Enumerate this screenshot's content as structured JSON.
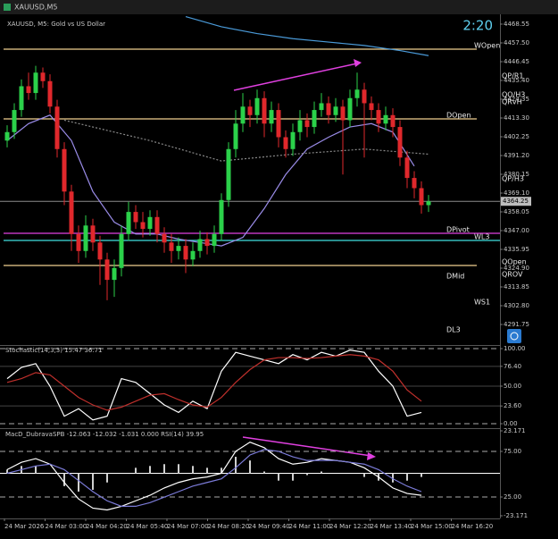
{
  "window_title": "XAUUSD,M5",
  "time_labels": [
    "24 Mar 2026",
    "24 Mar 03:00",
    "24 Mar 04:20",
    "24 Mar 05:40",
    "24 Mar 07:00",
    "24 Mar 08:20",
    "24 Mar 09:40",
    "24 Mar 11:00",
    "24 Mar 12:20",
    "24 Mar 13:40",
    "24 Mar 15:00",
    "24 Mar 16:20"
  ],
  "chart_data": [
    {
      "type": "candlestick",
      "title": "XAUUSD, M5: Gold vs US Dollar",
      "timer": "2:20",
      "up_color": "#2bd14a",
      "down_color": "#e0282c",
      "open": [
        4400,
        4405,
        4418,
        4432,
        4428,
        4440,
        4435,
        4420,
        4395,
        4370,
        4345,
        4335,
        4350,
        4340,
        4330,
        4318,
        4325,
        4345,
        4358,
        4352,
        4348,
        4355,
        4345,
        4340,
        4335,
        4338,
        4330,
        4335,
        4342,
        4338,
        4345,
        4365,
        4395,
        4410,
        4420,
        4415,
        4425,
        4410,
        4418,
        4402,
        4395,
        4405,
        4412,
        4408,
        4418,
        4422,
        4415,
        4420,
        4412,
        4425,
        4430,
        4422,
        4418,
        4410,
        4415,
        4408,
        4390,
        4378,
        4372,
        4362
      ],
      "high": [
        4409,
        4422,
        4436,
        4440,
        4444,
        4443,
        4439,
        4424,
        4399,
        4374,
        4350,
        4356,
        4354,
        4344,
        4334,
        4330,
        4350,
        4364,
        4362,
        4358,
        4359,
        4359,
        4349,
        4345,
        4343,
        4342,
        4340,
        4347,
        4346,
        4350,
        4369,
        4399,
        4418,
        4428,
        4424,
        4430,
        4429,
        4423,
        4422,
        4406,
        4410,
        4418,
        4416,
        4423,
        4428,
        4426,
        4425,
        4424,
        4430,
        4440,
        4434,
        4426,
        4422,
        4420,
        4419,
        4412,
        4394,
        4382,
        4376,
        4368
      ],
      "low": [
        4396,
        4401,
        4414,
        4424,
        4424,
        4431,
        4416,
        4390,
        4362,
        4335,
        4328,
        4331,
        4335,
        4315,
        4306,
        4308,
        4320,
        4341,
        4348,
        4343,
        4344,
        4340,
        4334,
        4328,
        4330,
        4322,
        4326,
        4331,
        4333,
        4334,
        4341,
        4361,
        4390,
        4405,
        4408,
        4410,
        4402,
        4405,
        4396,
        4390,
        4391,
        4400,
        4402,
        4404,
        4414,
        4410,
        4411,
        4380,
        4408,
        4420,
        4390,
        4412,
        4405,
        4406,
        4402,
        4385,
        4372,
        4366,
        4357,
        4358
      ],
      "close": [
        4405,
        4418,
        4432,
        4428,
        4440,
        4435,
        4420,
        4395,
        4370,
        4345,
        4335,
        4350,
        4340,
        4330,
        4318,
        4325,
        4345,
        4358,
        4352,
        4348,
        4355,
        4345,
        4340,
        4335,
        4338,
        4330,
        4335,
        4342,
        4338,
        4345,
        4365,
        4395,
        4410,
        4420,
        4415,
        4425,
        4410,
        4418,
        4402,
        4395,
        4405,
        4412,
        4408,
        4418,
        4422,
        4415,
        4420,
        4412,
        4425,
        4430,
        4422,
        4418,
        4410,
        4415,
        4408,
        4390,
        4378,
        4372,
        4362,
        4364.25
      ],
      "last_price": 4364.25,
      "lines": [
        {
          "color": "#9a8ce8",
          "dashed": false,
          "x": [
            0,
            3,
            6,
            9,
            12,
            15,
            18,
            21,
            24,
            27,
            30,
            33,
            36,
            39,
            42,
            45,
            48,
            51,
            54,
            57
          ],
          "values": [
            4400,
            4410,
            4415,
            4400,
            4370,
            4352,
            4345,
            4345,
            4342,
            4340,
            4338,
            4343,
            4360,
            4380,
            4395,
            4402,
            4408,
            4410,
            4405,
            4385
          ]
        },
        {
          "color": "#4a9ad8",
          "dashed": false,
          "x": [
            25,
            30,
            35,
            40,
            45,
            50,
            55,
            59
          ],
          "values": [
            4473,
            4467,
            4463,
            4460,
            4458,
            4456,
            4453,
            4450
          ]
        },
        {
          "color": "#8a8a8a",
          "dashed": true,
          "x": [
            8,
            20,
            30,
            40,
            50,
            59
          ],
          "values": [
            4412,
            4400,
            4388,
            4392,
            4395,
            4392
          ]
        }
      ],
      "levels": [
        {
          "name": "WOpen",
          "value": 4453.82,
          "color": "#f0d090",
          "line": true
        },
        {
          "name": "QP/R1",
          "value": 4435.93,
          "line": false
        },
        {
          "name": "QO/H3",
          "value": 4424.88,
          "line": false
        },
        {
          "name": "QRvH",
          "value": 4420.67,
          "line": false
        },
        {
          "name": "DOpen",
          "value": 4412.77,
          "color": "#f0d090",
          "line": true
        },
        {
          "name": "QP/H3",
          "value": 4375.42,
          "line": false
        },
        {
          "name": "DPivot",
          "value": 4345.42,
          "color": "#e040e0",
          "line": true
        },
        {
          "name": "WL3",
          "value": 4341.21,
          "color": "#40e0e0",
          "line": true
        },
        {
          "name": "QOpen",
          "value": 4326.48,
          "color": "#f0d090",
          "line": true
        },
        {
          "name": "QROV",
          "value": 4319.11,
          "line": false
        },
        {
          "name": "DMid",
          "value": 4318.06,
          "line": false
        },
        {
          "name": "WS1",
          "value": 4302.8,
          "line": false
        },
        {
          "name": "DL3",
          "value": 4286.5,
          "line": false
        }
      ],
      "ylim": [
        4280.17,
        4473.29
      ],
      "yticks": [
        4468.55,
        {
          "value": 4457.5,
          "label": "4457.50"
        },
        4446.45,
        {
          "value": 4435.4,
          "label": "4435.40"
        },
        4424.35,
        {
          "value": 4413.3,
          "label": "4413.30"
        },
        4402.25,
        {
          "value": 4391.2,
          "label": "4391.20"
        },
        4380.15,
        {
          "value": 4369.1,
          "label": "4369.10"
        },
        4358.05,
        {
          "value": 4347,
          "label": "4347.00"
        },
        4335.95,
        {
          "value": 4324.9,
          "label": "4324.90"
        },
        4313.85,
        {
          "value": 4302.8,
          "label": "4302.80"
        },
        4291.75
      ]
    },
    {
      "type": "line",
      "title": "Stochastic(14,3,3) 15.47 36.71",
      "x": [
        0,
        2,
        4,
        6,
        8,
        10,
        12,
        14,
        16,
        18,
        20,
        22,
        24,
        26,
        28,
        30,
        32,
        34,
        36,
        38,
        40,
        42,
        44,
        46,
        48,
        50,
        52,
        54,
        56,
        58
      ],
      "series": [
        {
          "color": "#ffffff",
          "values": [
            60,
            75,
            80,
            50,
            10,
            20,
            5,
            10,
            60,
            55,
            40,
            25,
            15,
            30,
            20,
            70,
            95,
            90,
            85,
            80,
            92,
            85,
            95,
            90,
            98,
            95,
            70,
            50,
            10,
            15
          ]
        },
        {
          "color": "#c0302c",
          "values": [
            55,
            60,
            68,
            65,
            50,
            35,
            25,
            18,
            22,
            30,
            38,
            40,
            32,
            25,
            22,
            35,
            55,
            72,
            85,
            88,
            88,
            87,
            88,
            90,
            92,
            90,
            85,
            70,
            45,
            30
          ]
        }
      ],
      "ylim": [
        -4.76,
        102.38
      ],
      "yticks": [
        {
          "value": 100,
          "label": "100.00"
        },
        {
          "value": 76.4,
          "label": "76.40"
        },
        {
          "value": 50,
          "label": "50.00"
        },
        {
          "value": 23.6,
          "label": "23.60"
        },
        {
          "value": 0,
          "label": "0.00"
        }
      ]
    },
    {
      "type": "macd",
      "title": "MacD_DubravaSPB -12.063 -12.032 -1.031 0.000 RSI(14) 39.95",
      "x": [
        0,
        2,
        4,
        6,
        8,
        10,
        12,
        14,
        16,
        18,
        20,
        22,
        24,
        26,
        28,
        30,
        32,
        34,
        36,
        38,
        40,
        42,
        44,
        46,
        48,
        50,
        52,
        54,
        56,
        58
      ],
      "histogram": [
        2,
        4,
        4,
        0,
        -7,
        -10,
        -9,
        -5,
        0,
        3,
        4,
        5,
        5,
        4,
        3,
        3,
        9,
        7,
        1,
        -4,
        -4,
        -1,
        1,
        0,
        0,
        -2,
        -4,
        -5,
        -4,
        -2
      ],
      "series": [
        {
          "color": "#ffffff",
          "values": [
            2,
            6,
            8,
            5,
            -5,
            -14,
            -19,
            -20,
            -18,
            -15,
            -12,
            -8,
            -5,
            -3,
            -2,
            0,
            12,
            17,
            14,
            8,
            5,
            6,
            8,
            7,
            6,
            3,
            -2,
            -8,
            -11,
            -12
          ]
        },
        {
          "color": "#7b7bd8",
          "values": [
            0,
            2,
            4,
            5,
            2,
            -4,
            -10,
            -15,
            -18,
            -18,
            -16,
            -13,
            -10,
            -7,
            -5,
            -3,
            3,
            10,
            13,
            12,
            9,
            7,
            7,
            7,
            6,
            5,
            2,
            -3,
            -7,
            -10
          ]
        }
      ],
      "ylim": [
        -23.171,
        23.171
      ],
      "yticks": [
        23.171,
        -23.171
      ],
      "y2lim": [
        4.41,
        97.55
      ],
      "y2ticks": [
        {
          "value": 75,
          "label": "75.00"
        },
        {
          "value": 25,
          "label": "25.00"
        }
      ]
    }
  ]
}
